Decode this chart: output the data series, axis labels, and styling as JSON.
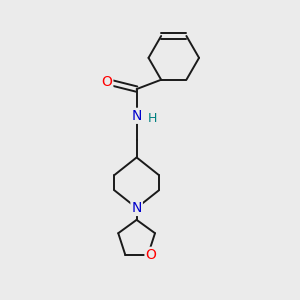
{
  "background_color": "#ebebeb",
  "bond_color": "#1a1a1a",
  "atom_colors": {
    "O": "#ff0000",
    "N": "#0000cc",
    "H": "#008080",
    "C": "#1a1a1a"
  },
  "figsize": [
    3.0,
    3.0
  ],
  "dpi": 100
}
